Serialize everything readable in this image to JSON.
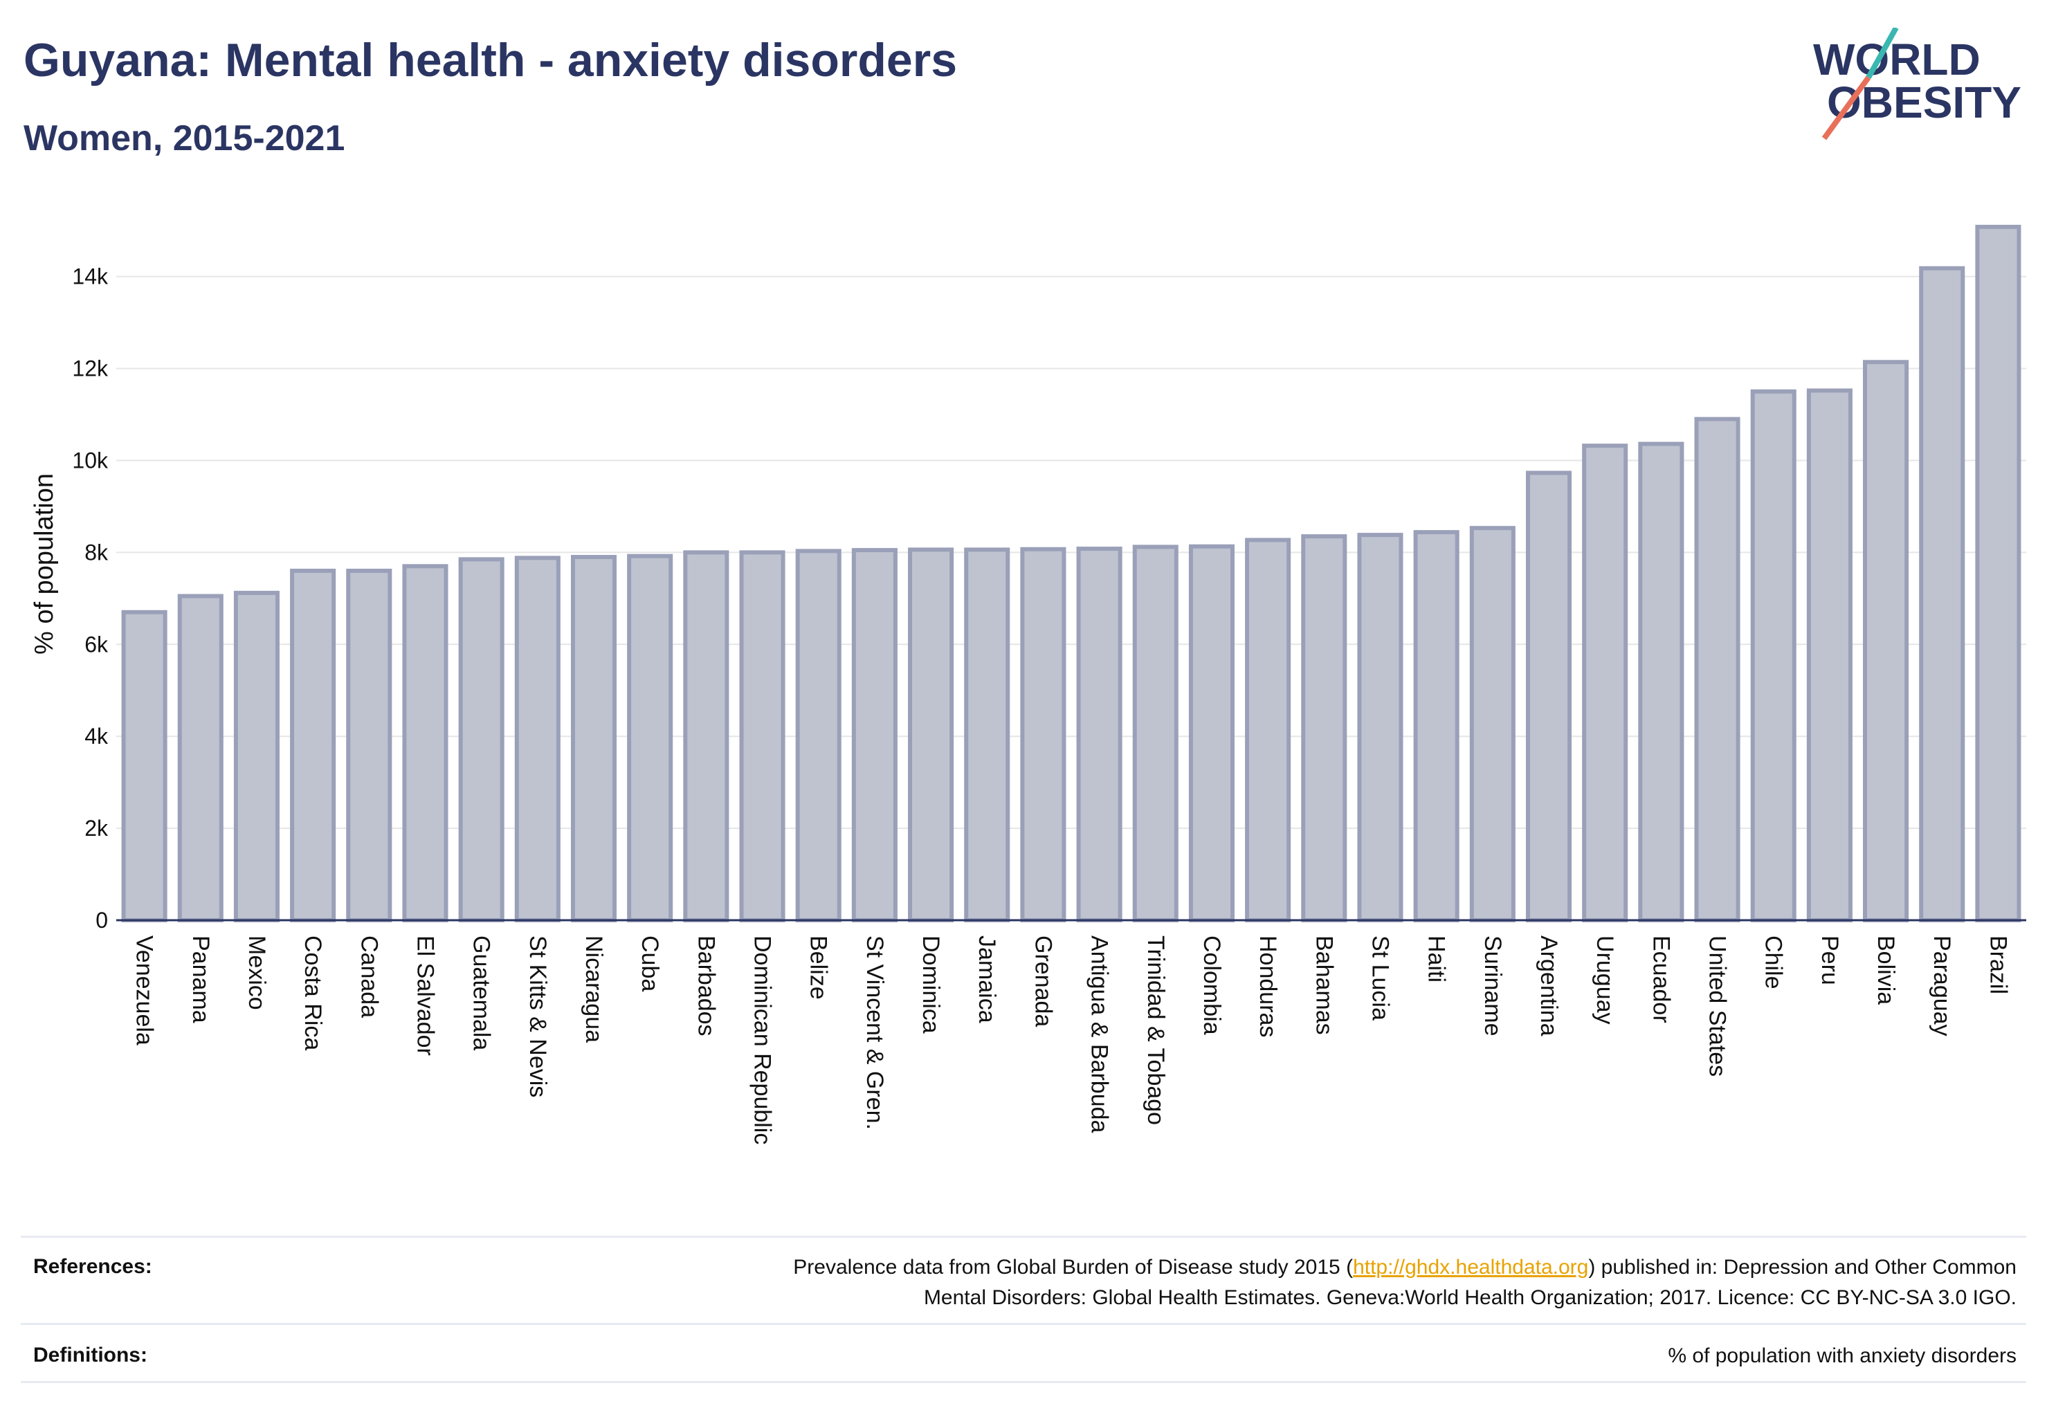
{
  "header": {
    "title": "Guyana: Mental health - anxiety disorders",
    "subtitle": "Women, 2015-2021"
  },
  "logo": {
    "line1": "WORLD",
    "line2": "OBESITY"
  },
  "colors": {
    "bar_fill": "#bfc3d0",
    "bar_stroke": "#9aa0b8",
    "title": "#2b3563",
    "grid": "#e6e6e6",
    "logo_teal": "#3ab7b0",
    "logo_coral": "#e8705a"
  },
  "chart_data": {
    "type": "bar",
    "title": "",
    "ylabel": "% of population",
    "xlabel": "",
    "ylim": [
      0,
      15500
    ],
    "yticks": [
      0,
      2000,
      4000,
      6000,
      8000,
      10000,
      12000,
      14000
    ],
    "ytick_labels": [
      "0",
      "2k",
      "4k",
      "6k",
      "8k",
      "10k",
      "12k",
      "14k"
    ],
    "grid": "horizontal",
    "categories": [
      "Venezuela",
      "Panama",
      "Mexico",
      "Costa Rica",
      "Canada",
      "El Salvador",
      "Guatemala",
      "St Kitts & Nevis",
      "Nicaragua",
      "Cuba",
      "Barbados",
      "Dominican Republic",
      "Belize",
      "St Vincent & Gren.",
      "Dominica",
      "Jamaica",
      "Grenada",
      "Antigua & Barbuda",
      "Trinidad & Tobago",
      "Colombia",
      "Honduras",
      "Bahamas",
      "St Lucia",
      "Haiti",
      "Suriname",
      "Argentina",
      "Uruguay",
      "Ecuador",
      "United States",
      "Chile",
      "Peru",
      "Bolivia",
      "Paraguay",
      "Brazil"
    ],
    "values": [
      6700,
      7050,
      7120,
      7600,
      7600,
      7700,
      7850,
      7880,
      7900,
      7920,
      8000,
      8000,
      8030,
      8050,
      8060,
      8060,
      8070,
      8080,
      8120,
      8130,
      8270,
      8350,
      8380,
      8440,
      8530,
      9730,
      10320,
      10360,
      10900,
      11500,
      11520,
      12140,
      14180,
      15080
    ]
  },
  "footer": {
    "references_label": "References:",
    "references_line1_pre": "Prevalence data from Global Burden of Disease study 2015 (",
    "references_link": "http://ghdx.healthdata.org",
    "references_line1_post": ") published in: Depression and Other Common",
    "references_line2": "Mental Disorders: Global Health Estimates. Geneva:World Health Organization; 2017. Licence: CC BY-NC-SA 3.0 IGO.",
    "definitions_label": "Definitions:",
    "definitions_text": "% of population with anxiety disorders"
  }
}
